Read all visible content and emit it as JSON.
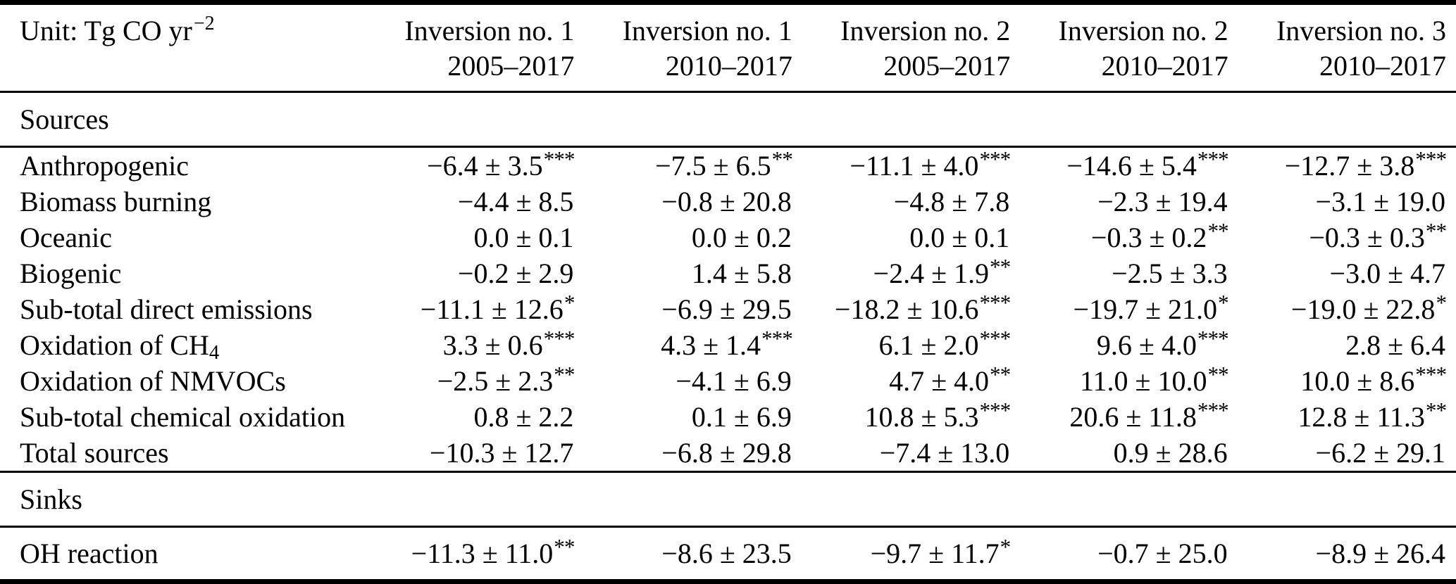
{
  "header": {
    "unit_text": "Unit: Tg CO yr",
    "unit_sup": "−2",
    "cols": [
      {
        "name": "Inversion no. 1",
        "period": "2005–2017"
      },
      {
        "name": "Inversion no. 1",
        "period": "2010–2017"
      },
      {
        "name": "Inversion no. 2",
        "period": "2005–2017"
      },
      {
        "name": "Inversion no. 2",
        "period": "2010–2017"
      },
      {
        "name": "Inversion no. 3",
        "period": "2010–2017"
      }
    ]
  },
  "sections": {
    "sources": "Sources",
    "sinks": "Sinks"
  },
  "rows": [
    {
      "label": "Anthropogenic",
      "cells": [
        {
          "v": "−6.4 ± 3.5",
          "s": "***"
        },
        {
          "v": "−7.5 ± 6.5",
          "s": "**"
        },
        {
          "v": "−11.1 ± 4.0",
          "s": "***"
        },
        {
          "v": "−14.6 ± 5.4",
          "s": "***"
        },
        {
          "v": "−12.7 ± 3.8",
          "s": "***"
        }
      ]
    },
    {
      "label": "Biomass burning",
      "cells": [
        {
          "v": "−4.4 ± 8.5",
          "s": ""
        },
        {
          "v": "−0.8 ± 20.8",
          "s": ""
        },
        {
          "v": "−4.8 ± 7.8",
          "s": ""
        },
        {
          "v": "−2.3 ± 19.4",
          "s": ""
        },
        {
          "v": "−3.1 ± 19.0",
          "s": ""
        }
      ]
    },
    {
      "label": "Oceanic",
      "cells": [
        {
          "v": "0.0 ± 0.1",
          "s": ""
        },
        {
          "v": "0.0 ± 0.2",
          "s": ""
        },
        {
          "v": "0.0 ± 0.1",
          "s": ""
        },
        {
          "v": "−0.3 ± 0.2",
          "s": "**"
        },
        {
          "v": "−0.3 ± 0.3",
          "s": "**"
        }
      ]
    },
    {
      "label": "Biogenic",
      "cells": [
        {
          "v": "−0.2 ± 2.9",
          "s": ""
        },
        {
          "v": "1.4 ± 5.8",
          "s": ""
        },
        {
          "v": "−2.4 ± 1.9",
          "s": "**"
        },
        {
          "v": "−2.5 ± 3.3",
          "s": ""
        },
        {
          "v": "−3.0 ± 4.7",
          "s": ""
        }
      ]
    },
    {
      "label": "Sub-total direct emissions",
      "cells": [
        {
          "v": "−11.1 ± 12.6",
          "s": "*"
        },
        {
          "v": "−6.9 ± 29.5",
          "s": ""
        },
        {
          "v": "−18.2 ± 10.6",
          "s": "***"
        },
        {
          "v": "−19.7 ± 21.0",
          "s": "*"
        },
        {
          "v": "−19.0 ± 22.8",
          "s": "*"
        }
      ]
    },
    {
      "label": "Oxidation of CH",
      "label_sub": "4",
      "cells": [
        {
          "v": "3.3 ± 0.6",
          "s": "***"
        },
        {
          "v": "4.3 ± 1.4",
          "s": "***"
        },
        {
          "v": "6.1 ± 2.0",
          "s": "***"
        },
        {
          "v": "9.6 ± 4.0",
          "s": "***"
        },
        {
          "v": "2.8 ± 6.4",
          "s": ""
        }
      ]
    },
    {
      "label": "Oxidation of NMVOCs",
      "cells": [
        {
          "v": "−2.5 ± 2.3",
          "s": "**"
        },
        {
          "v": "−4.1 ± 6.9",
          "s": ""
        },
        {
          "v": "4.7 ± 4.0",
          "s": "**"
        },
        {
          "v": "11.0 ± 10.0",
          "s": "**"
        },
        {
          "v": "10.0 ± 8.6",
          "s": "***"
        }
      ]
    },
    {
      "label": "Sub-total chemical oxidation",
      "cells": [
        {
          "v": "0.8 ± 2.2",
          "s": ""
        },
        {
          "v": "0.1 ± 6.9",
          "s": ""
        },
        {
          "v": "10.8 ± 5.3",
          "s": "***"
        },
        {
          "v": "20.6 ± 11.8",
          "s": "***"
        },
        {
          "v": "12.8 ± 11.3",
          "s": "**"
        }
      ]
    },
    {
      "label": "Total sources",
      "cells": [
        {
          "v": "−10.3 ± 12.7",
          "s": ""
        },
        {
          "v": "−6.8 ± 29.8",
          "s": ""
        },
        {
          "v": "−7.4 ± 13.0",
          "s": ""
        },
        {
          "v": "0.9 ± 28.6",
          "s": ""
        },
        {
          "v": "−6.2 ± 29.1",
          "s": ""
        }
      ]
    }
  ],
  "sink_rows": [
    {
      "label": "OH reaction",
      "cells": [
        {
          "v": "−11.3 ± 11.0",
          "s": "**"
        },
        {
          "v": "−8.6 ± 23.5",
          "s": ""
        },
        {
          "v": "−9.7 ± 11.7",
          "s": "*"
        },
        {
          "v": "−0.7 ± 25.0",
          "s": ""
        },
        {
          "v": "−8.9 ± 26.4",
          "s": ""
        }
      ]
    }
  ]
}
